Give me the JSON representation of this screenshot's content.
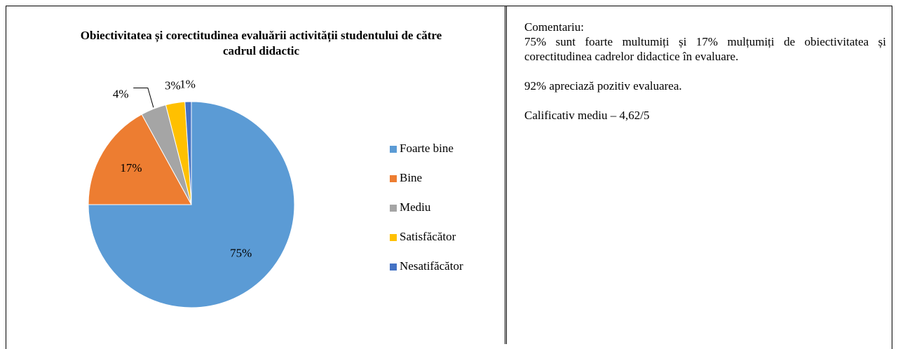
{
  "chart_data": {
    "type": "pie",
    "title": "Obiectivitatea și corectitudinea evaluării activității studentului de către cadrul didactic",
    "categories": [
      "Foarte bine",
      "Bine",
      "Mediu",
      "Satisfăcător",
      "Nesatifăcător"
    ],
    "values": [
      75,
      17,
      4,
      3,
      1
    ],
    "value_labels": [
      "75%",
      "17%",
      "4%",
      "3%",
      "1%"
    ],
    "colors": [
      "#5b9bd5",
      "#ed7d31",
      "#a5a5a5",
      "#ffc000",
      "#4472c4"
    ],
    "legend": "right"
  },
  "comment": {
    "heading": "Comentariu:",
    "paragraphs": [
      "75% sunt foarte multumiți și 17% mulțumiți de obiectivitatea și corectitudinea cadrelor didactice în evaluare.",
      "92% apreciază pozitiv evaluarea.",
      "Calificativ mediu – 4,62/5"
    ]
  }
}
